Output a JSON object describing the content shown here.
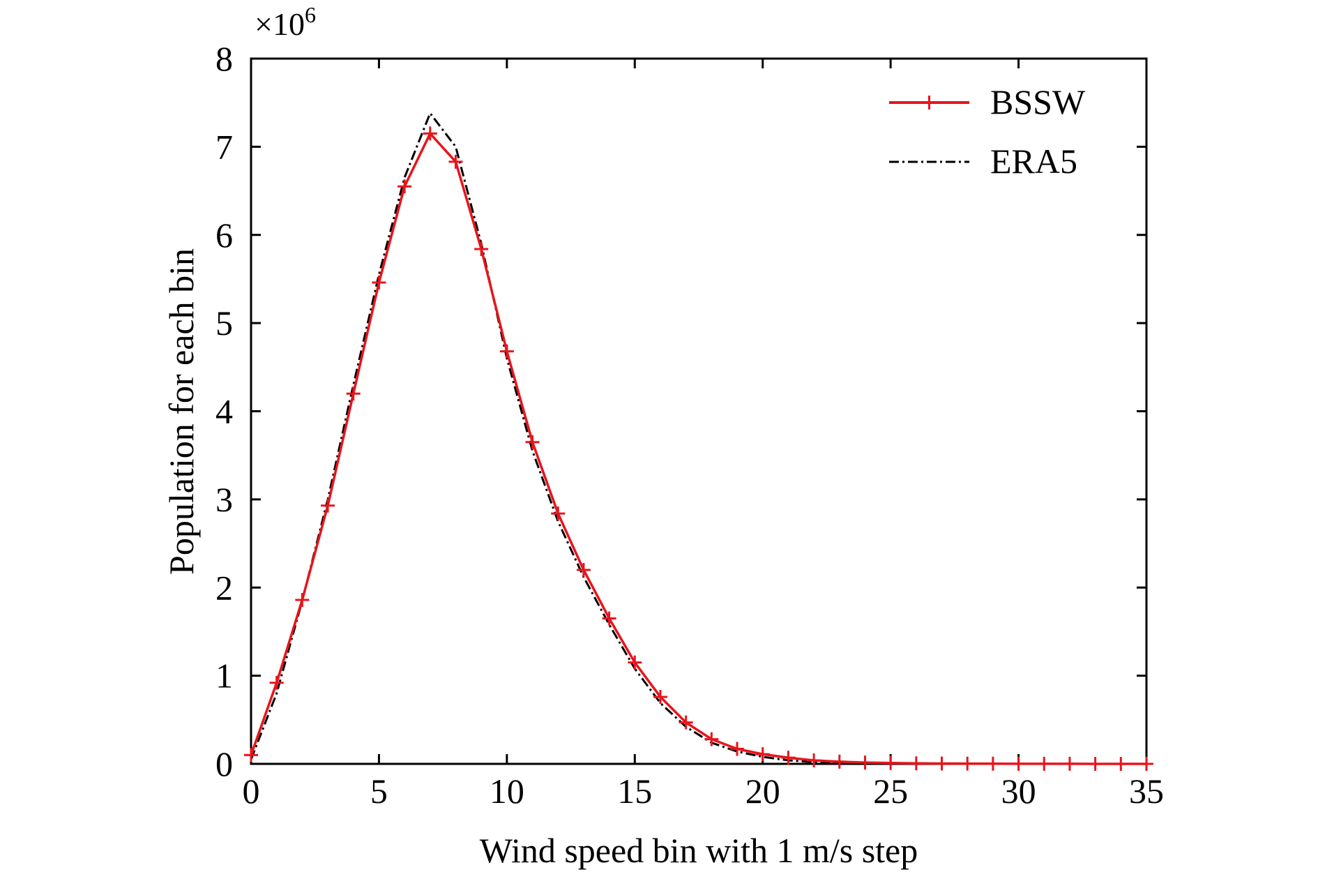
{
  "chart_data": {
    "type": "line",
    "title": "",
    "xlabel": "Wind speed bin with 1 m/s step",
    "ylabel": "Population for each bin",
    "y_multiplier": {
      "base": "×10",
      "exponent": "6"
    },
    "xlim": [
      0,
      35
    ],
    "ylim": [
      0,
      8
    ],
    "x_ticks": [
      "0",
      "5",
      "10",
      "15",
      "20",
      "25",
      "30",
      "35"
    ],
    "y_ticks": [
      "0",
      "1",
      "2",
      "3",
      "4",
      "5",
      "6",
      "7",
      "8"
    ],
    "grid": false,
    "legend_position": "top-right",
    "x": [
      0,
      1,
      2,
      3,
      4,
      5,
      6,
      7,
      8,
      9,
      10,
      11,
      12,
      13,
      14,
      15,
      16,
      17,
      18,
      19,
      20,
      21,
      22,
      23,
      24,
      25,
      26,
      27,
      28,
      29,
      30,
      31,
      32,
      33,
      34,
      35
    ],
    "series": [
      {
        "name": "BSSW",
        "color": "#e8141c",
        "style": "solid-plus-markers",
        "values": [
          0.1,
          0.92,
          1.86,
          2.93,
          4.2,
          5.46,
          6.55,
          7.15,
          6.83,
          5.84,
          4.68,
          3.65,
          2.84,
          2.2,
          1.65,
          1.15,
          0.76,
          0.47,
          0.28,
          0.17,
          0.11,
          0.07,
          0.04,
          0.025,
          0.015,
          0.01,
          0.006,
          0.004,
          0.003,
          0.002,
          0.001,
          0.001,
          0.001,
          0,
          0,
          0
        ]
      },
      {
        "name": "ERA5",
        "color": "#000000",
        "style": "dash-dot",
        "values": [
          0.05,
          0.8,
          1.85,
          3.0,
          4.3,
          5.55,
          6.65,
          7.38,
          7.0,
          5.9,
          4.6,
          3.55,
          2.75,
          2.12,
          1.58,
          1.08,
          0.69,
          0.42,
          0.24,
          0.14,
          0.08,
          0.04,
          0.02,
          0.012,
          0.007,
          0.004,
          0.002,
          0.001,
          0.001,
          0,
          0,
          0,
          0,
          0,
          0,
          0
        ]
      }
    ]
  }
}
